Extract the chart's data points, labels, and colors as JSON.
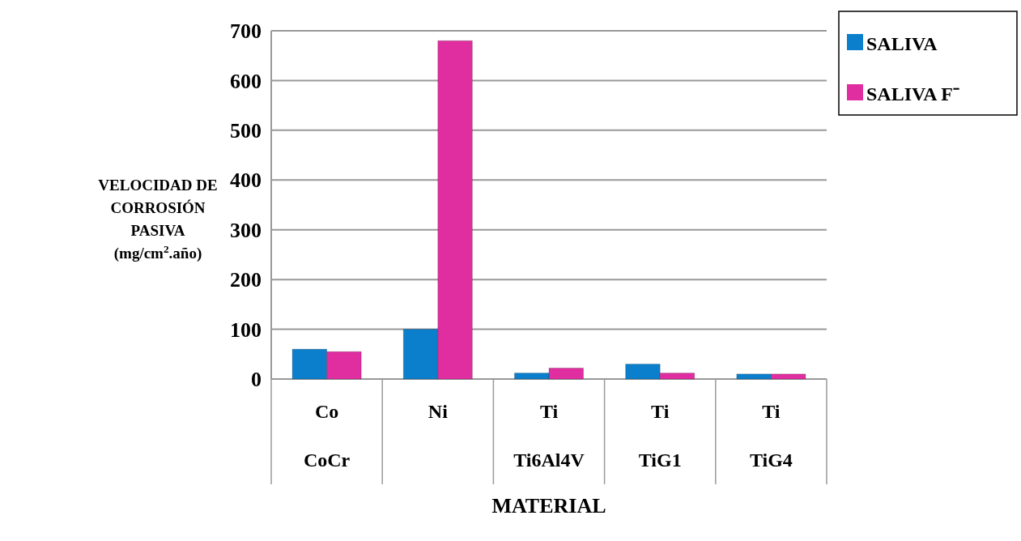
{
  "chart_data": {
    "type": "bar",
    "ylabel": "VELOCIDAD DE CORROSIÓN PASIVA (mg/cm$^{2}$.año)",
    "xlabel": "MATERIAL",
    "categories": [
      "Co\nCoCr",
      "Ni\n",
      "Ti\nTi6Al4V",
      "Ti\nTiG1",
      "Ti\nTiG4"
    ],
    "series": [
      {
        "name": "SALIVA",
        "color": "#0b7fcc",
        "values": [
          60,
          100,
          12,
          30,
          10
        ]
      },
      {
        "name": "SALIVA F⁻",
        "color": "#e02ea0",
        "values": [
          55,
          680,
          22,
          12,
          10
        ]
      }
    ],
    "ylim": [
      0,
      700
    ],
    "yticks": [
      0,
      100,
      200,
      300,
      400,
      500,
      600,
      700
    ],
    "grid": "y",
    "legend": "top right"
  }
}
